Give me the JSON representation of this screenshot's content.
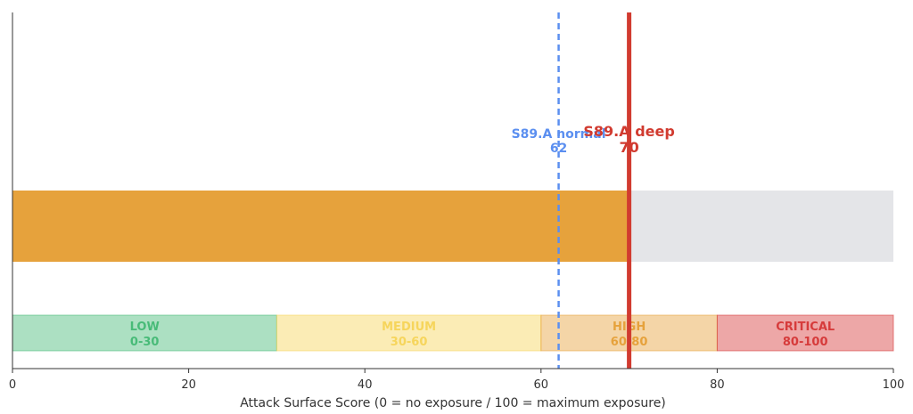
{
  "chart_data": {
    "type": "bar",
    "orientation": "horizontal",
    "xlabel": "Attack Surface Score (0 = no exposure / 100 = maximum exposure)",
    "xlim": [
      0,
      100
    ],
    "x_ticks": [
      "0",
      "20",
      "40",
      "60",
      "80",
      "100"
    ],
    "score_bar": {
      "value": 70,
      "max": 100,
      "fill_color": "#e6a23c",
      "track_color": "#e4e5e8"
    },
    "zones": [
      {
        "label": "LOW",
        "range": "0-30",
        "from": 0,
        "to": 30,
        "color": "#48bb78"
      },
      {
        "label": "MEDIUM",
        "range": "30-60",
        "from": 30,
        "to": 60,
        "color": "#f6d55c"
      },
      {
        "label": "HIGH",
        "range": "60-80",
        "from": 60,
        "to": 80,
        "color": "#e6a23c"
      },
      {
        "label": "CRITICAL",
        "range": "80-100",
        "from": 80,
        "to": 100,
        "color": "#d63b3b"
      }
    ],
    "markers": [
      {
        "label": "S89.A normal",
        "value": 62,
        "value_text": "62",
        "color": "#5b8ff0",
        "style": "dashed"
      },
      {
        "label": "S89.A deep",
        "value": 70,
        "value_text": "70",
        "color": "#d13b30",
        "style": "solid"
      }
    ],
    "grid": false,
    "legend": "none"
  }
}
